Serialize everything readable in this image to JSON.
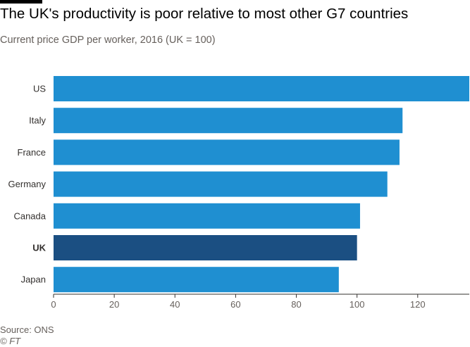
{
  "header": {
    "title": "The UK's productivity is poor relative to most other G7 countries",
    "subtitle": "Current price GDP per worker, 2016 (UK = 100)"
  },
  "footer": {
    "source": "Source: ONS",
    "credit": "© FT"
  },
  "colors": {
    "bar": "#1f8fd1",
    "highlight": "#1b4f82",
    "axis": "#33302e"
  },
  "chart_data": {
    "type": "bar",
    "orientation": "horizontal",
    "title": "The UK's productivity is poor relative to most other G7 countries",
    "subtitle": "Current price GDP per worker, 2016 (UK = 100)",
    "categories": [
      "US",
      "Italy",
      "France",
      "Germany",
      "Canada",
      "UK",
      "Japan"
    ],
    "values": [
      137,
      115,
      114,
      110,
      101,
      100,
      94
    ],
    "highlight": "UK",
    "xlim": [
      0,
      137
    ],
    "xticks": [
      0,
      20,
      40,
      60,
      80,
      100,
      120
    ],
    "grid": false,
    "legend": "none"
  }
}
